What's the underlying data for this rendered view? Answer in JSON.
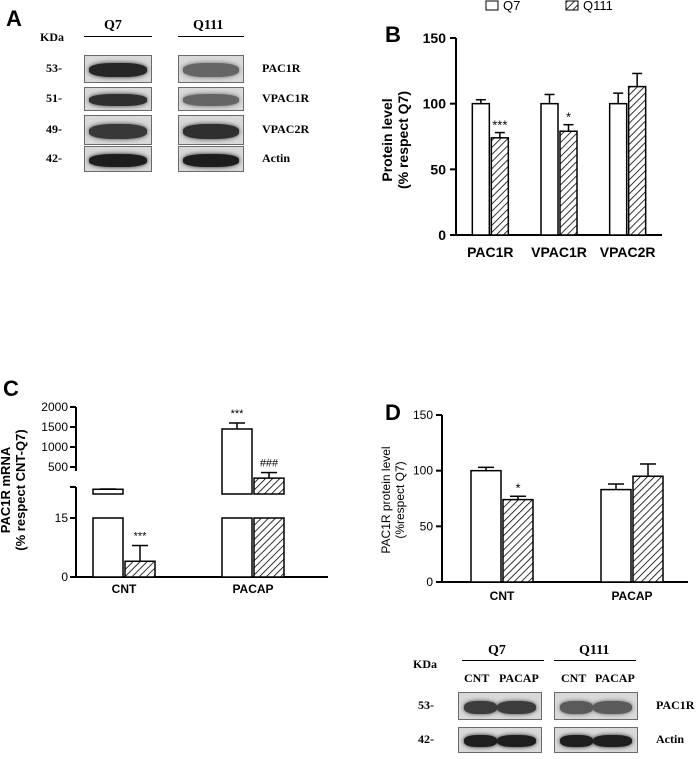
{
  "panels": {
    "A": "A",
    "B": "B",
    "C": "C",
    "D": "D"
  },
  "colors": {
    "q7": "#ffffff",
    "q111": "hatched",
    "axis": "#000000",
    "band_bg": "#d4d4d4",
    "band_dark": "#1c1c1c"
  },
  "blot_a": {
    "kda_label": "KDa",
    "lanes": [
      "Q7",
      "Q111"
    ],
    "rows": [
      {
        "kda": "53-",
        "protein": "PAC1R",
        "q7_level": 0.9,
        "q111_level": 0.55
      },
      {
        "kda": "51-",
        "protein": "VPAC1R",
        "q7_level": 0.85,
        "q111_level": 0.55
      },
      {
        "kda": "49-",
        "protein": "VPAC2R",
        "q7_level": 0.8,
        "q111_level": 0.85
      },
      {
        "kda": "42-",
        "protein": "Actin",
        "q7_level": 0.95,
        "q111_level": 0.95
      }
    ]
  },
  "blot_d": {
    "kda_label": "KDa",
    "groups": [
      "Q7",
      "Q111"
    ],
    "lanes": [
      "CNT",
      "PACAP",
      "CNT",
      "PACAP"
    ],
    "rows": [
      {
        "kda": "53-",
        "protein": "PAC1R"
      },
      {
        "kda": "42-",
        "protein": "Actin"
      }
    ]
  },
  "chart_data": [
    {
      "id": "B",
      "type": "bar",
      "categories": [
        "PAC1R",
        "VPAC1R",
        "VPAC2R"
      ],
      "series": [
        {
          "name": "Q7",
          "values": [
            100,
            100,
            100
          ],
          "errors": [
            3,
            7,
            8
          ]
        },
        {
          "name": "Q111",
          "values": [
            74,
            79,
            113
          ],
          "errors": [
            4,
            5,
            10
          ]
        }
      ],
      "annotations": [
        {
          "category": "PAC1R",
          "series": "Q111",
          "text": "***"
        },
        {
          "category": "VPAC1R",
          "series": "Q111",
          "text": "*"
        }
      ],
      "ylabel": "Protein level\n(% respect Q7)",
      "ylim": [
        0,
        150
      ],
      "yticks": [
        "0",
        "50",
        "100",
        "150"
      ],
      "legend": "top"
    },
    {
      "id": "C",
      "type": "bar",
      "broken_axis": true,
      "categories": [
        "CNT",
        "PACAP"
      ],
      "series": [
        {
          "name": "Q7",
          "values": [
            100,
            1450
          ],
          "errors": [
            5,
            150
          ]
        },
        {
          "name": "Q111",
          "values": [
            4,
            300
          ],
          "errors": [
            4,
            100
          ]
        }
      ],
      "annotations": [
        {
          "category": "CNT",
          "series": "Q111",
          "text": "***"
        },
        {
          "category": "PACAP",
          "series": "Q7",
          "text": "***"
        },
        {
          "category": "PACAP",
          "series": "Q111",
          "text": "###"
        }
      ],
      "ylabel": "PAC1R mRNA\n(% respect CNT-Q7)",
      "yticks": [
        "0",
        "15",
        "500",
        "1000",
        "1500",
        "2000"
      ]
    },
    {
      "id": "D",
      "type": "bar",
      "categories": [
        "CNT",
        "PACAP"
      ],
      "series": [
        {
          "name": "Q7",
          "values": [
            100,
            83
          ],
          "errors": [
            3,
            5
          ]
        },
        {
          "name": "Q111",
          "values": [
            74,
            95
          ],
          "errors": [
            3,
            11
          ]
        }
      ],
      "annotations": [
        {
          "category": "CNT",
          "series": "Q111",
          "text": "*"
        }
      ],
      "ylabel": "PAC1R protein level\n(%respect Q7)",
      "ylim": [
        0,
        150
      ],
      "yticks": [
        "0",
        "50",
        "100",
        "150"
      ]
    }
  ]
}
